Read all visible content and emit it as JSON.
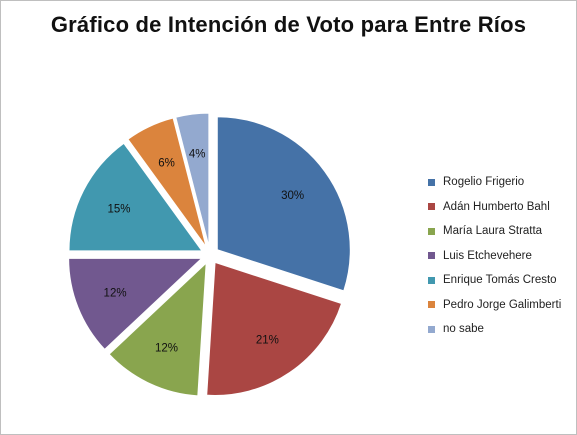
{
  "chart_data": {
    "type": "pie",
    "title": "Gráfico de Intención de Voto para Entre Ríos",
    "categories": [
      "Rogelio Frigerio",
      "Adán Humberto Bahl",
      "María Laura Stratta",
      "Luis Etchevehere",
      "Enrique Tomás Cresto",
      "Pedro Jorge Galimberti",
      "no sabe"
    ],
    "values": [
      30,
      21,
      12,
      12,
      15,
      6,
      4
    ],
    "labels": [
      "30%",
      "21%",
      "12%",
      "12%",
      "15%",
      "6%",
      "4%"
    ],
    "colors": [
      "#4572a7",
      "#aa4643",
      "#89a54e",
      "#71588f",
      "#4198af",
      "#db843d",
      "#93a9cf"
    ],
    "legend_position": "right",
    "exploded": true
  }
}
